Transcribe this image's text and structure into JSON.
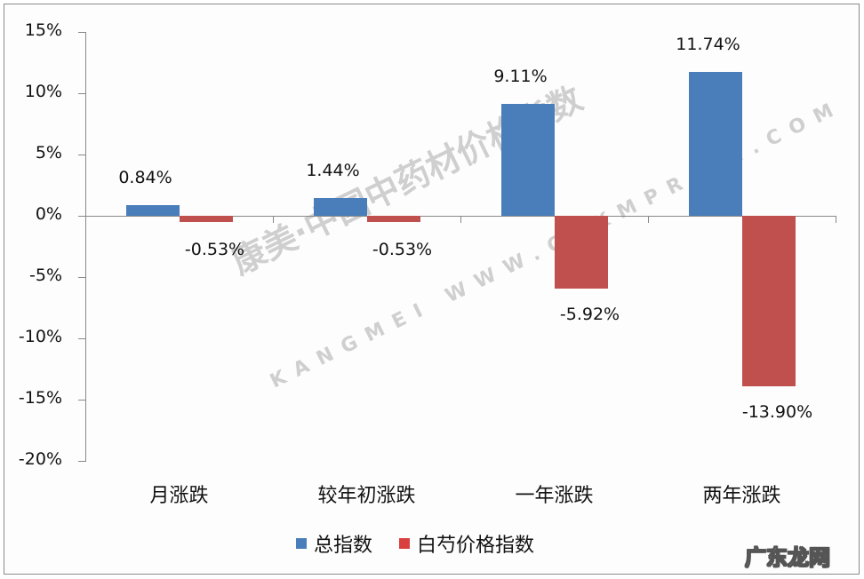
{
  "chart_data": {
    "type": "bar",
    "title": "",
    "xlabel": "",
    "ylabel": "",
    "ylim": [
      -20,
      15
    ],
    "yticks": [
      "15%",
      "10%",
      "5%",
      "0%",
      "-5%",
      "-10%",
      "-15%",
      "-20%"
    ],
    "categories": [
      "月涨跌",
      "较年初涨跌",
      "一年涨跌",
      "两年涨跌"
    ],
    "series": [
      {
        "name": "总指数",
        "color": "#4a7ebb",
        "values": [
          0.84,
          1.44,
          9.11,
          11.74
        ],
        "labels": [
          "0.84%",
          "1.44%",
          "9.11%",
          "11.74%"
        ]
      },
      {
        "name": "白芍价格指数",
        "color": "#c0504d",
        "values": [
          -0.53,
          -0.53,
          -5.92,
          -13.9
        ],
        "labels": [
          "-0.53%",
          "-0.53%",
          "-5.92%",
          "-13.90%"
        ]
      }
    ],
    "legend_position": "bottom",
    "grid": false
  },
  "legend": {
    "items": [
      {
        "label": "总指数",
        "color": "#4a7ebb"
      },
      {
        "label": "白芍价格指数",
        "color": "#d9413f"
      }
    ]
  },
  "watermark": {
    "main": "康美·中国中药材价格指数",
    "sub": "KANGMEI WWW.CNKMPRICE.COM"
  },
  "corner_mark": "广东龙网"
}
